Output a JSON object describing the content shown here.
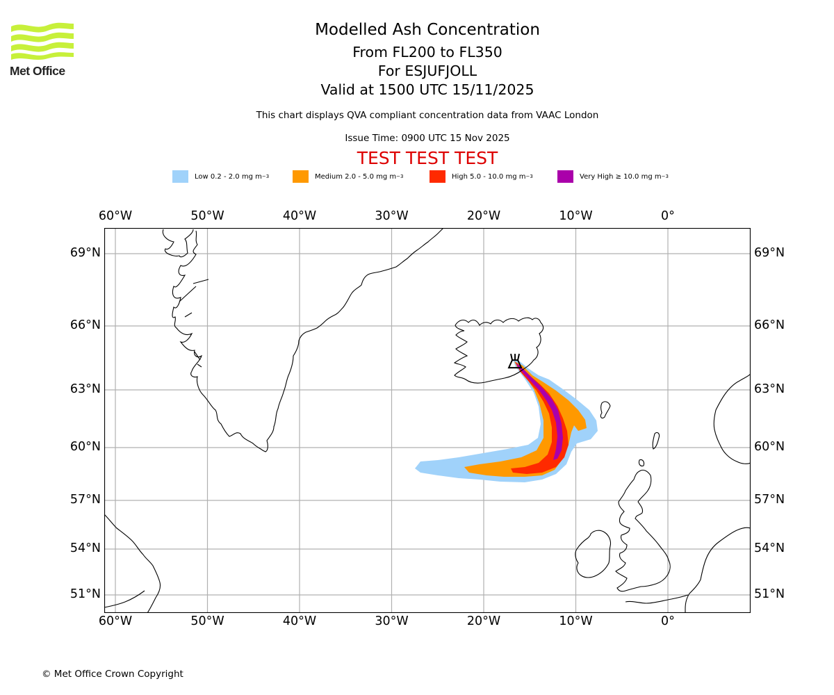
{
  "logo": {
    "text": "Met Office",
    "color": "#c7f03a"
  },
  "header": {
    "title": "Modelled Ash Concentration",
    "levels": "From FL200 to FL350",
    "volcano": "For ESJUFJOLL",
    "valid": "Valid at 1500 UTC 15/11/2025",
    "subtitle": "This chart displays QVA compliant concentration data from VAAC London",
    "issue_time": "Issue Time: 0900 UTC 15 Nov 2025",
    "test_banner": "TEST TEST TEST",
    "test_color": "#dd0000"
  },
  "legend": [
    {
      "label": "Low 0.2 - 2.0 mg m",
      "unit_exp": "−3",
      "color": "#a0d2fa"
    },
    {
      "label": "Medium 2.0 - 5.0 mg m",
      "unit_exp": "−3",
      "color": "#ff9900"
    },
    {
      "label": "High 5.0 - 10.0 mg m",
      "unit_exp": "−3",
      "color": "#ff2a00"
    },
    {
      "label": "Very High  ≥  10.0 mg m",
      "unit_exp": "−3",
      "color": "#aa00aa"
    }
  ],
  "axes": {
    "lon_ticks": [
      "60°W",
      "50°W",
      "40°W",
      "30°W",
      "20°W",
      "10°W",
      "0°"
    ],
    "lat_ticks": [
      "69°N",
      "66°N",
      "63°N",
      "60°N",
      "57°N",
      "54°N",
      "51°N"
    ],
    "lon_values": [
      -60,
      -50,
      -40,
      -30,
      -20,
      -10,
      0
    ],
    "lat_values": [
      69,
      66,
      63,
      60,
      57,
      54,
      51
    ]
  },
  "map": {
    "extent_lon": [
      -61.2,
      9.2
    ],
    "extent_lat": [
      49.8,
      70.3
    ],
    "volcano_name": "ESJUFJOLL",
    "volcano_lon": -16.6,
    "volcano_lat": 64.3
  },
  "footer": {
    "copyright": "© Met Office Crown Copyright"
  }
}
